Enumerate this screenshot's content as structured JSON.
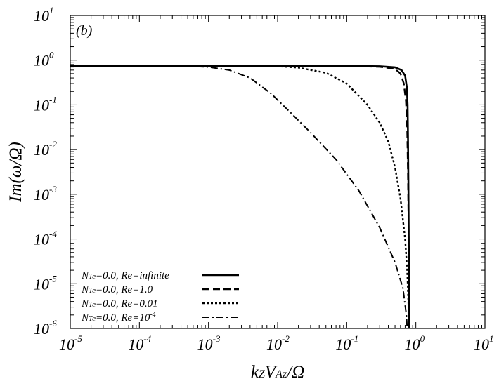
{
  "chart_data": {
    "type": "line",
    "panel_label": "(b)",
    "xlabel": "kZVAz/Ω",
    "xlabel_parts": {
      "base1": "k",
      "sub1": "Z",
      "base2": "V",
      "sub2": "Az",
      "tail": "/Ω"
    },
    "ylabel": "Im(ω/Ω)",
    "x_scale": "log",
    "y_scale": "log",
    "xlim": [
      1e-05,
      10
    ],
    "ylim": [
      1e-06,
      10
    ],
    "x_ticks": [
      {
        "base": "10",
        "exp": "-5"
      },
      {
        "base": "10",
        "exp": "-4"
      },
      {
        "base": "10",
        "exp": "-3"
      },
      {
        "base": "10",
        "exp": "-2"
      },
      {
        "base": "10",
        "exp": "-1"
      },
      {
        "base": "10",
        "exp": "0"
      },
      {
        "base": "10",
        "exp": "1"
      }
    ],
    "y_ticks": [
      {
        "base": "10",
        "exp": "1"
      },
      {
        "base": "10",
        "exp": "0"
      },
      {
        "base": "10",
        "exp": "-1"
      },
      {
        "base": "10",
        "exp": "-2"
      },
      {
        "base": "10",
        "exp": "-3"
      },
      {
        "base": "10",
        "exp": "-4"
      },
      {
        "base": "10",
        "exp": "-5"
      },
      {
        "base": "10",
        "exp": "-6"
      }
    ],
    "grid": false,
    "legend_position": "bottom-left",
    "series": [
      {
        "name": "NTe=0.0, Re=infinite",
        "label_parts": {
          "n": "N",
          "sub": "Te",
          "rest": "=0.0, Re=infinite",
          "sup": ""
        },
        "style": "solid",
        "points": [
          [
            1e-05,
            0.75
          ],
          [
            0.001,
            0.75
          ],
          [
            0.1,
            0.745
          ],
          [
            0.3,
            0.73
          ],
          [
            0.5,
            0.69
          ],
          [
            0.62,
            0.6
          ],
          [
            0.7,
            0.45
          ],
          [
            0.74,
            0.25
          ],
          [
            0.76,
            0.1
          ],
          [
            0.77,
            0.02
          ],
          [
            0.78,
            0.002
          ],
          [
            0.79,
            0.0001
          ],
          [
            0.8,
            5e-06
          ],
          [
            0.805,
            1e-06
          ]
        ]
      },
      {
        "name": "NTe=0.0, Re=1.0",
        "label_parts": {
          "n": "N",
          "sub": "Te",
          "rest": "=0.0, Re=1.0",
          "sup": ""
        },
        "style": "dashed",
        "points": [
          [
            1e-05,
            0.75
          ],
          [
            0.001,
            0.75
          ],
          [
            0.1,
            0.74
          ],
          [
            0.3,
            0.71
          ],
          [
            0.5,
            0.64
          ],
          [
            0.6,
            0.5
          ],
          [
            0.67,
            0.3
          ],
          [
            0.72,
            0.12
          ],
          [
            0.75,
            0.03
          ],
          [
            0.77,
            0.003
          ],
          [
            0.785,
            0.0002
          ],
          [
            0.795,
            1e-05
          ],
          [
            0.8,
            1e-06
          ]
        ]
      },
      {
        "name": "NTe=0.0, Re=0.01",
        "label_parts": {
          "n": "N",
          "sub": "Te",
          "rest": "=0.0, Re=0.01",
          "sup": ""
        },
        "style": "dotted",
        "points": [
          [
            1e-05,
            0.75
          ],
          [
            0.003,
            0.75
          ],
          [
            0.01,
            0.73
          ],
          [
            0.02,
            0.68
          ],
          [
            0.05,
            0.52
          ],
          [
            0.1,
            0.3
          ],
          [
            0.2,
            0.1
          ],
          [
            0.3,
            0.04
          ],
          [
            0.4,
            0.015
          ],
          [
            0.5,
            0.004
          ],
          [
            0.6,
            0.0008
          ],
          [
            0.7,
            0.0001
          ],
          [
            0.75,
            2e-05
          ],
          [
            0.78,
            4e-06
          ],
          [
            0.8,
            1e-06
          ]
        ]
      },
      {
        "name": "NTe=0.0, Re=10^-4",
        "label_parts": {
          "n": "N",
          "sub": "Te",
          "rest": "=0.0, Re=10",
          "sup": "-4"
        },
        "style": "dashdot",
        "points": [
          [
            1e-05,
            0.75
          ],
          [
            0.0005,
            0.74
          ],
          [
            0.001,
            0.7
          ],
          [
            0.002,
            0.6
          ],
          [
            0.004,
            0.4
          ],
          [
            0.008,
            0.18
          ],
          [
            0.015,
            0.07
          ],
          [
            0.03,
            0.024
          ],
          [
            0.07,
            0.006
          ],
          [
            0.15,
            0.0012
          ],
          [
            0.3,
            0.00018
          ],
          [
            0.5,
            3e-05
          ],
          [
            0.65,
            8e-06
          ],
          [
            0.73,
            2e-06
          ],
          [
            0.75,
            1e-06
          ]
        ]
      }
    ]
  }
}
